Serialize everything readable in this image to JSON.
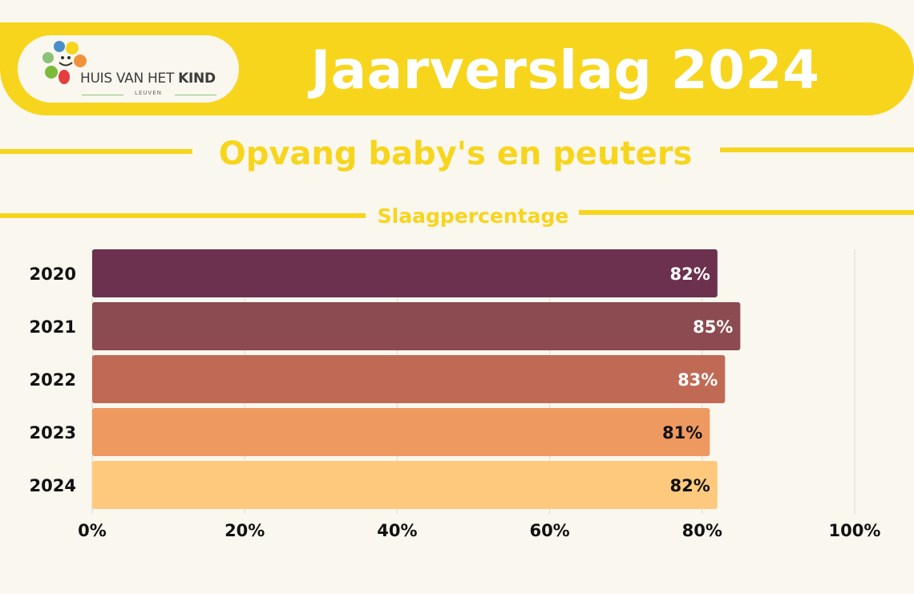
{
  "header": {
    "title": "Jaarverslag 2024",
    "logo": {
      "brand_prefix": "HUIS VAN HET",
      "brand_bold": "KIND",
      "sub": "LEUVEN",
      "icon": "flower-smiley-icon"
    }
  },
  "section_title": "Opvang baby's en peuters",
  "chart_title": "Slaagpercentage",
  "chart_data": {
    "type": "bar",
    "orientation": "horizontal",
    "categories": [
      "2020",
      "2021",
      "2022",
      "2023",
      "2024"
    ],
    "values": [
      82,
      85,
      83,
      81,
      82
    ],
    "data_labels": [
      "82%",
      "85%",
      "83%",
      "81%",
      "82%"
    ],
    "colors": [
      "#6b314f",
      "#8b4b50",
      "#c06a55",
      "#ee9960",
      "#fec97c"
    ],
    "label_colors": [
      "#ffffff",
      "#ffffff",
      "#ffffff",
      "#111111",
      "#111111"
    ],
    "xlim": [
      0,
      100
    ],
    "x_ticks": [
      0,
      20,
      40,
      60,
      80,
      100
    ],
    "x_tick_labels": [
      "0%",
      "20%",
      "40%",
      "60%",
      "80%",
      "100%"
    ],
    "grid": true,
    "title": "Slaagpercentage",
    "xlabel": "",
    "ylabel": ""
  },
  "colors": {
    "accent": "#f7d51d",
    "background": "#faf7ef"
  }
}
